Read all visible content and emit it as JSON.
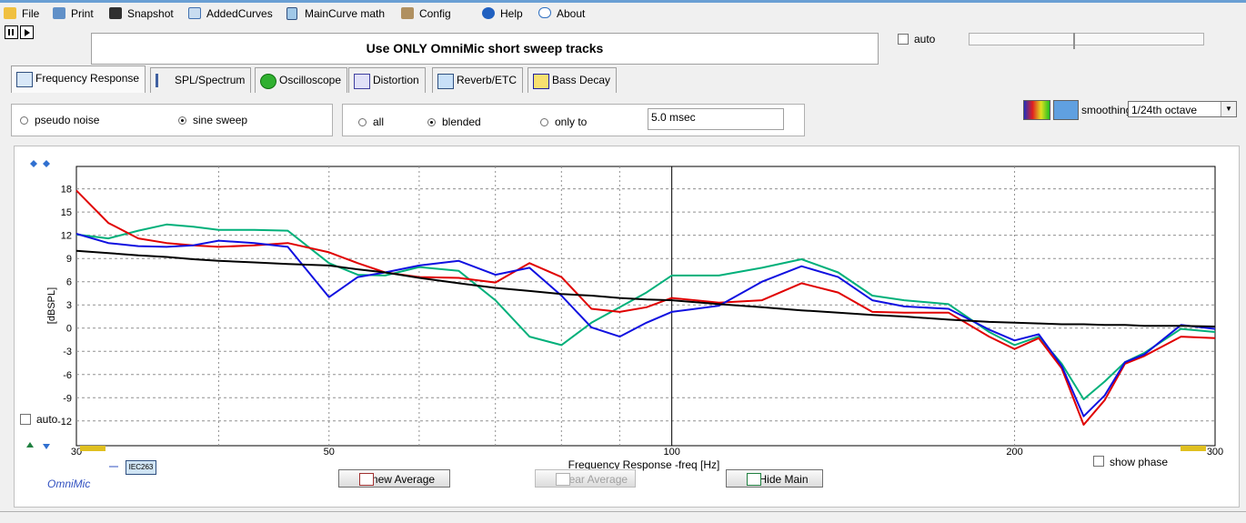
{
  "menu": [
    "File",
    "Print",
    "Snapshot",
    "AddedCurves",
    "MainCurve math",
    "Config",
    "Help",
    "About"
  ],
  "message": "Use ONLY OmniMic short sweep tracks",
  "auto_top": "auto",
  "tabs": [
    "Frequency Response",
    "SPL/Spectrum",
    "Oscilloscope",
    "Distortion",
    "Reverb/ETC",
    "Bass Decay"
  ],
  "active_tab": 0,
  "source_options": [
    "pseudo noise",
    "sine sweep"
  ],
  "source_selected": 1,
  "window_options": [
    "all",
    "blended",
    "only to"
  ],
  "window_selected": 1,
  "window_time": "5.0 msec",
  "smoothing_label": "smoothing",
  "smoothing_value": "1/24th octave",
  "chart_data": {
    "type": "line",
    "x_label": "Frequency Response -freq [Hz]",
    "y_label": "[dBSPL]",
    "log_x": true,
    "grid": true,
    "xlim": [
      30,
      300
    ],
    "ylim": [
      -15.2,
      20.9
    ],
    "xticks": [
      30,
      50,
      100,
      200,
      300
    ],
    "x_minor_grid": [
      40,
      60,
      70,
      80,
      90
    ],
    "x_solid_line": 100,
    "yticks": [
      -12,
      -9,
      -6,
      -3,
      0,
      3,
      6,
      9,
      12,
      15,
      18
    ],
    "x": [
      30,
      32,
      34,
      36,
      38,
      40,
      43,
      46,
      50,
      53,
      56,
      60,
      65,
      70,
      75,
      80,
      85,
      90,
      95,
      100,
      110,
      120,
      130,
      140,
      150,
      160,
      175,
      190,
      200,
      210,
      220,
      230,
      240,
      250,
      260,
      280,
      300
    ],
    "series": [
      {
        "color": "#00b07a",
        "values": [
          12.1,
          11.6,
          12.6,
          13.4,
          13.1,
          12.7,
          12.7,
          12.6,
          8.4,
          6.9,
          6.8,
          7.9,
          7.4,
          3.6,
          -1.1,
          -2.2,
          0.7,
          2.7,
          4.6,
          6.8,
          6.8,
          7.8,
          8.9,
          7.2,
          4.2,
          3.6,
          3.1,
          -0.5,
          -2.2,
          -1.1,
          -4.6,
          -9.2,
          -6.9,
          -4.4,
          -3.2,
          -0.1,
          -0.5
        ]
      },
      {
        "color": "#e00000",
        "values": [
          17.8,
          13.6,
          11.6,
          11.0,
          10.7,
          10.5,
          10.7,
          11.0,
          9.8,
          8.4,
          7.2,
          6.6,
          6.5,
          5.9,
          8.4,
          6.6,
          2.5,
          2.1,
          2.7,
          3.9,
          3.3,
          3.6,
          5.8,
          4.6,
          2.1,
          2.0,
          2.0,
          -1.1,
          -2.7,
          -1.3,
          -5.2,
          -12.5,
          -9.3,
          -4.6,
          -3.6,
          -1.1,
          -1.3
        ]
      },
      {
        "color": "#1010e0",
        "values": [
          12.2,
          11.0,
          10.6,
          10.5,
          10.7,
          11.3,
          11.0,
          10.5,
          4.0,
          6.6,
          7.2,
          8.1,
          8.7,
          6.9,
          7.8,
          4.2,
          0.1,
          -1.1,
          0.7,
          2.1,
          2.9,
          6.0,
          8.0,
          6.6,
          3.6,
          2.8,
          2.5,
          -0.2,
          -1.6,
          -0.8,
          -4.9,
          -11.4,
          -8.7,
          -4.4,
          -3.4,
          0.4,
          -0.1
        ]
      },
      {
        "color": "#000000",
        "values": [
          10.0,
          9.7,
          9.4,
          9.2,
          8.9,
          8.7,
          8.5,
          8.3,
          8.1,
          7.6,
          7.2,
          6.5,
          5.8,
          5.2,
          4.8,
          4.4,
          4.2,
          3.9,
          3.7,
          3.6,
          3.1,
          2.7,
          2.3,
          2.0,
          1.7,
          1.5,
          1.1,
          0.8,
          0.7,
          0.6,
          0.5,
          0.5,
          0.4,
          0.4,
          0.3,
          0.3,
          0.2
        ]
      }
    ]
  },
  "auto_chart": "auto",
  "show_phase": "show phase",
  "brand": "OmniMic",
  "mic_tag": "IEC263",
  "buttons": [
    "new Average",
    "clear Average",
    "Hide Main"
  ]
}
